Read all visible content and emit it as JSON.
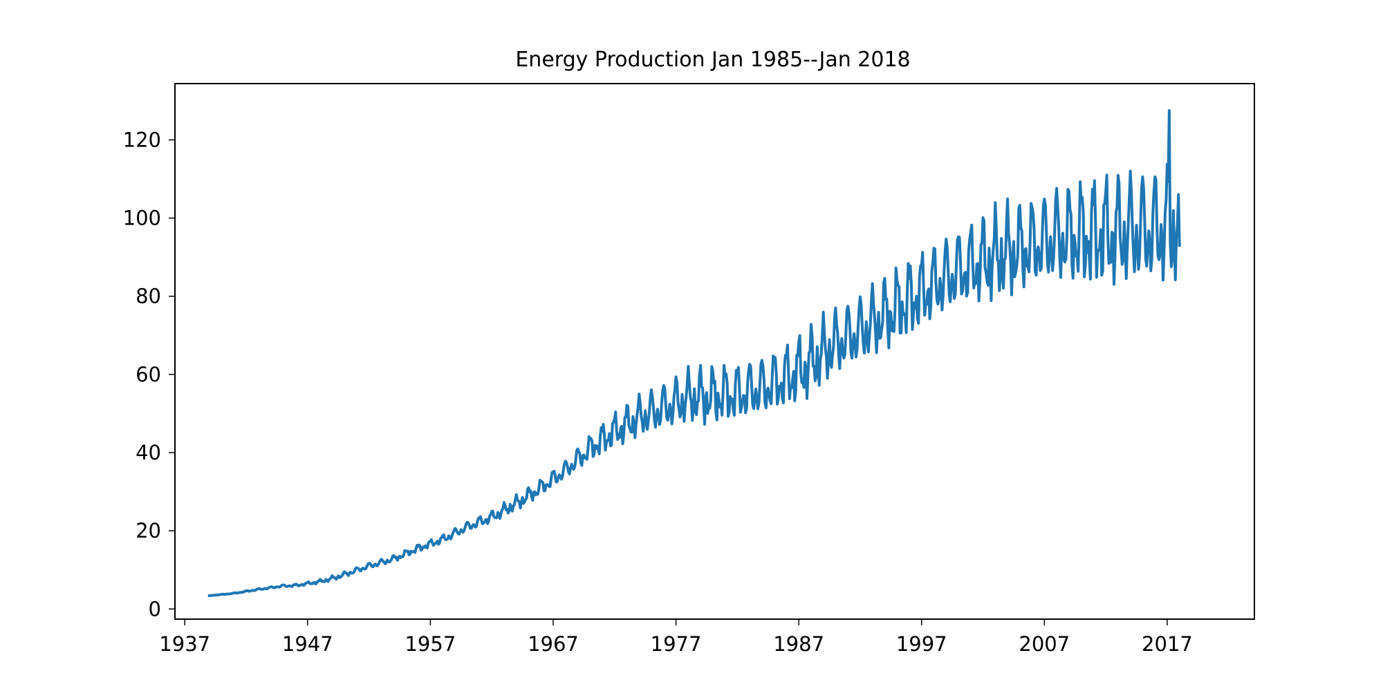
{
  "chart_data": {
    "type": "line",
    "title": "Energy Production Jan 1985--Jan 2018",
    "xlabel": "",
    "ylabel": "",
    "xlim": [
      1936.2,
      2024.1
    ],
    "ylim": [
      -2.6,
      134.4
    ],
    "x_tick_labels": [
      "1937",
      "1947",
      "1957",
      "1967",
      "1977",
      "1987",
      "1997",
      "2007",
      "2017"
    ],
    "x_tick_values": [
      1937,
      1947,
      1957,
      1967,
      1977,
      1987,
      1997,
      2007,
      2017
    ],
    "y_tick_labels": [
      "0",
      "20",
      "40",
      "60",
      "80",
      "100",
      "120"
    ],
    "y_tick_values": [
      0,
      20,
      40,
      60,
      80,
      100,
      120
    ],
    "grid": false,
    "legend": "none",
    "line_color": "#1f77b4",
    "series": [
      {
        "trend_x": [
          1939.0,
          1941.0,
          1943.0,
          1945.0,
          1946.0,
          1947.0,
          1948.0,
          1949.0,
          1950.0,
          1952.0,
          1954.0,
          1956.0,
          1958.0,
          1960.0,
          1962.0,
          1964.0,
          1966.0,
          1968.0,
          1970.0,
          1972.0,
          1974.0,
          1976.0,
          1978.0,
          1980.0,
          1982.0,
          1984.0,
          1986.0,
          1988.0,
          1990.0,
          1992.0,
          1994.0,
          1996.0,
          1998.0,
          2000.0,
          2002.0,
          2004.0,
          2006.0,
          2008.0,
          2010.0,
          2012.0,
          2014.0,
          2016.0,
          2018.0
        ],
        "trend_y": [
          3.4,
          4.0,
          5.0,
          5.9,
          6.0,
          6.5,
          7.0,
          7.8,
          8.8,
          11.0,
          12.8,
          15.5,
          17.8,
          21.0,
          23.5,
          27.0,
          31.0,
          35.5,
          41.0,
          45.5,
          49.0,
          51.5,
          54.0,
          54.5,
          55.0,
          56.5,
          59.0,
          63.0,
          68.0,
          71.0,
          75.0,
          79.0,
          83.0,
          86.5,
          89.0,
          91.0,
          93.0,
          95.0,
          95.5,
          96.0,
          96.5,
          97.0,
          97.5
        ],
        "amp_x": [
          1939.0,
          1947.0,
          1950.0,
          1957.0,
          1963.0,
          1968.0,
          1972.0,
          1976.0,
          1980.0,
          1985.0,
          1990.0,
          1995.0,
          2000.0,
          2005.0,
          2010.0,
          2015.0,
          2018.0
        ],
        "amp_y": [
          0.0,
          0.4,
          0.7,
          1.0,
          1.7,
          2.6,
          4.5,
          6.5,
          7.5,
          8.5,
          9.0,
          10.0,
          11.0,
          12.0,
          14.0,
          15.5,
          16.0
        ],
        "x_start": 1939.0,
        "x_end": 2018.0,
        "last_value": 93.0,
        "peak_value": 127.5,
        "peak_x": 2017.2
      }
    ]
  }
}
